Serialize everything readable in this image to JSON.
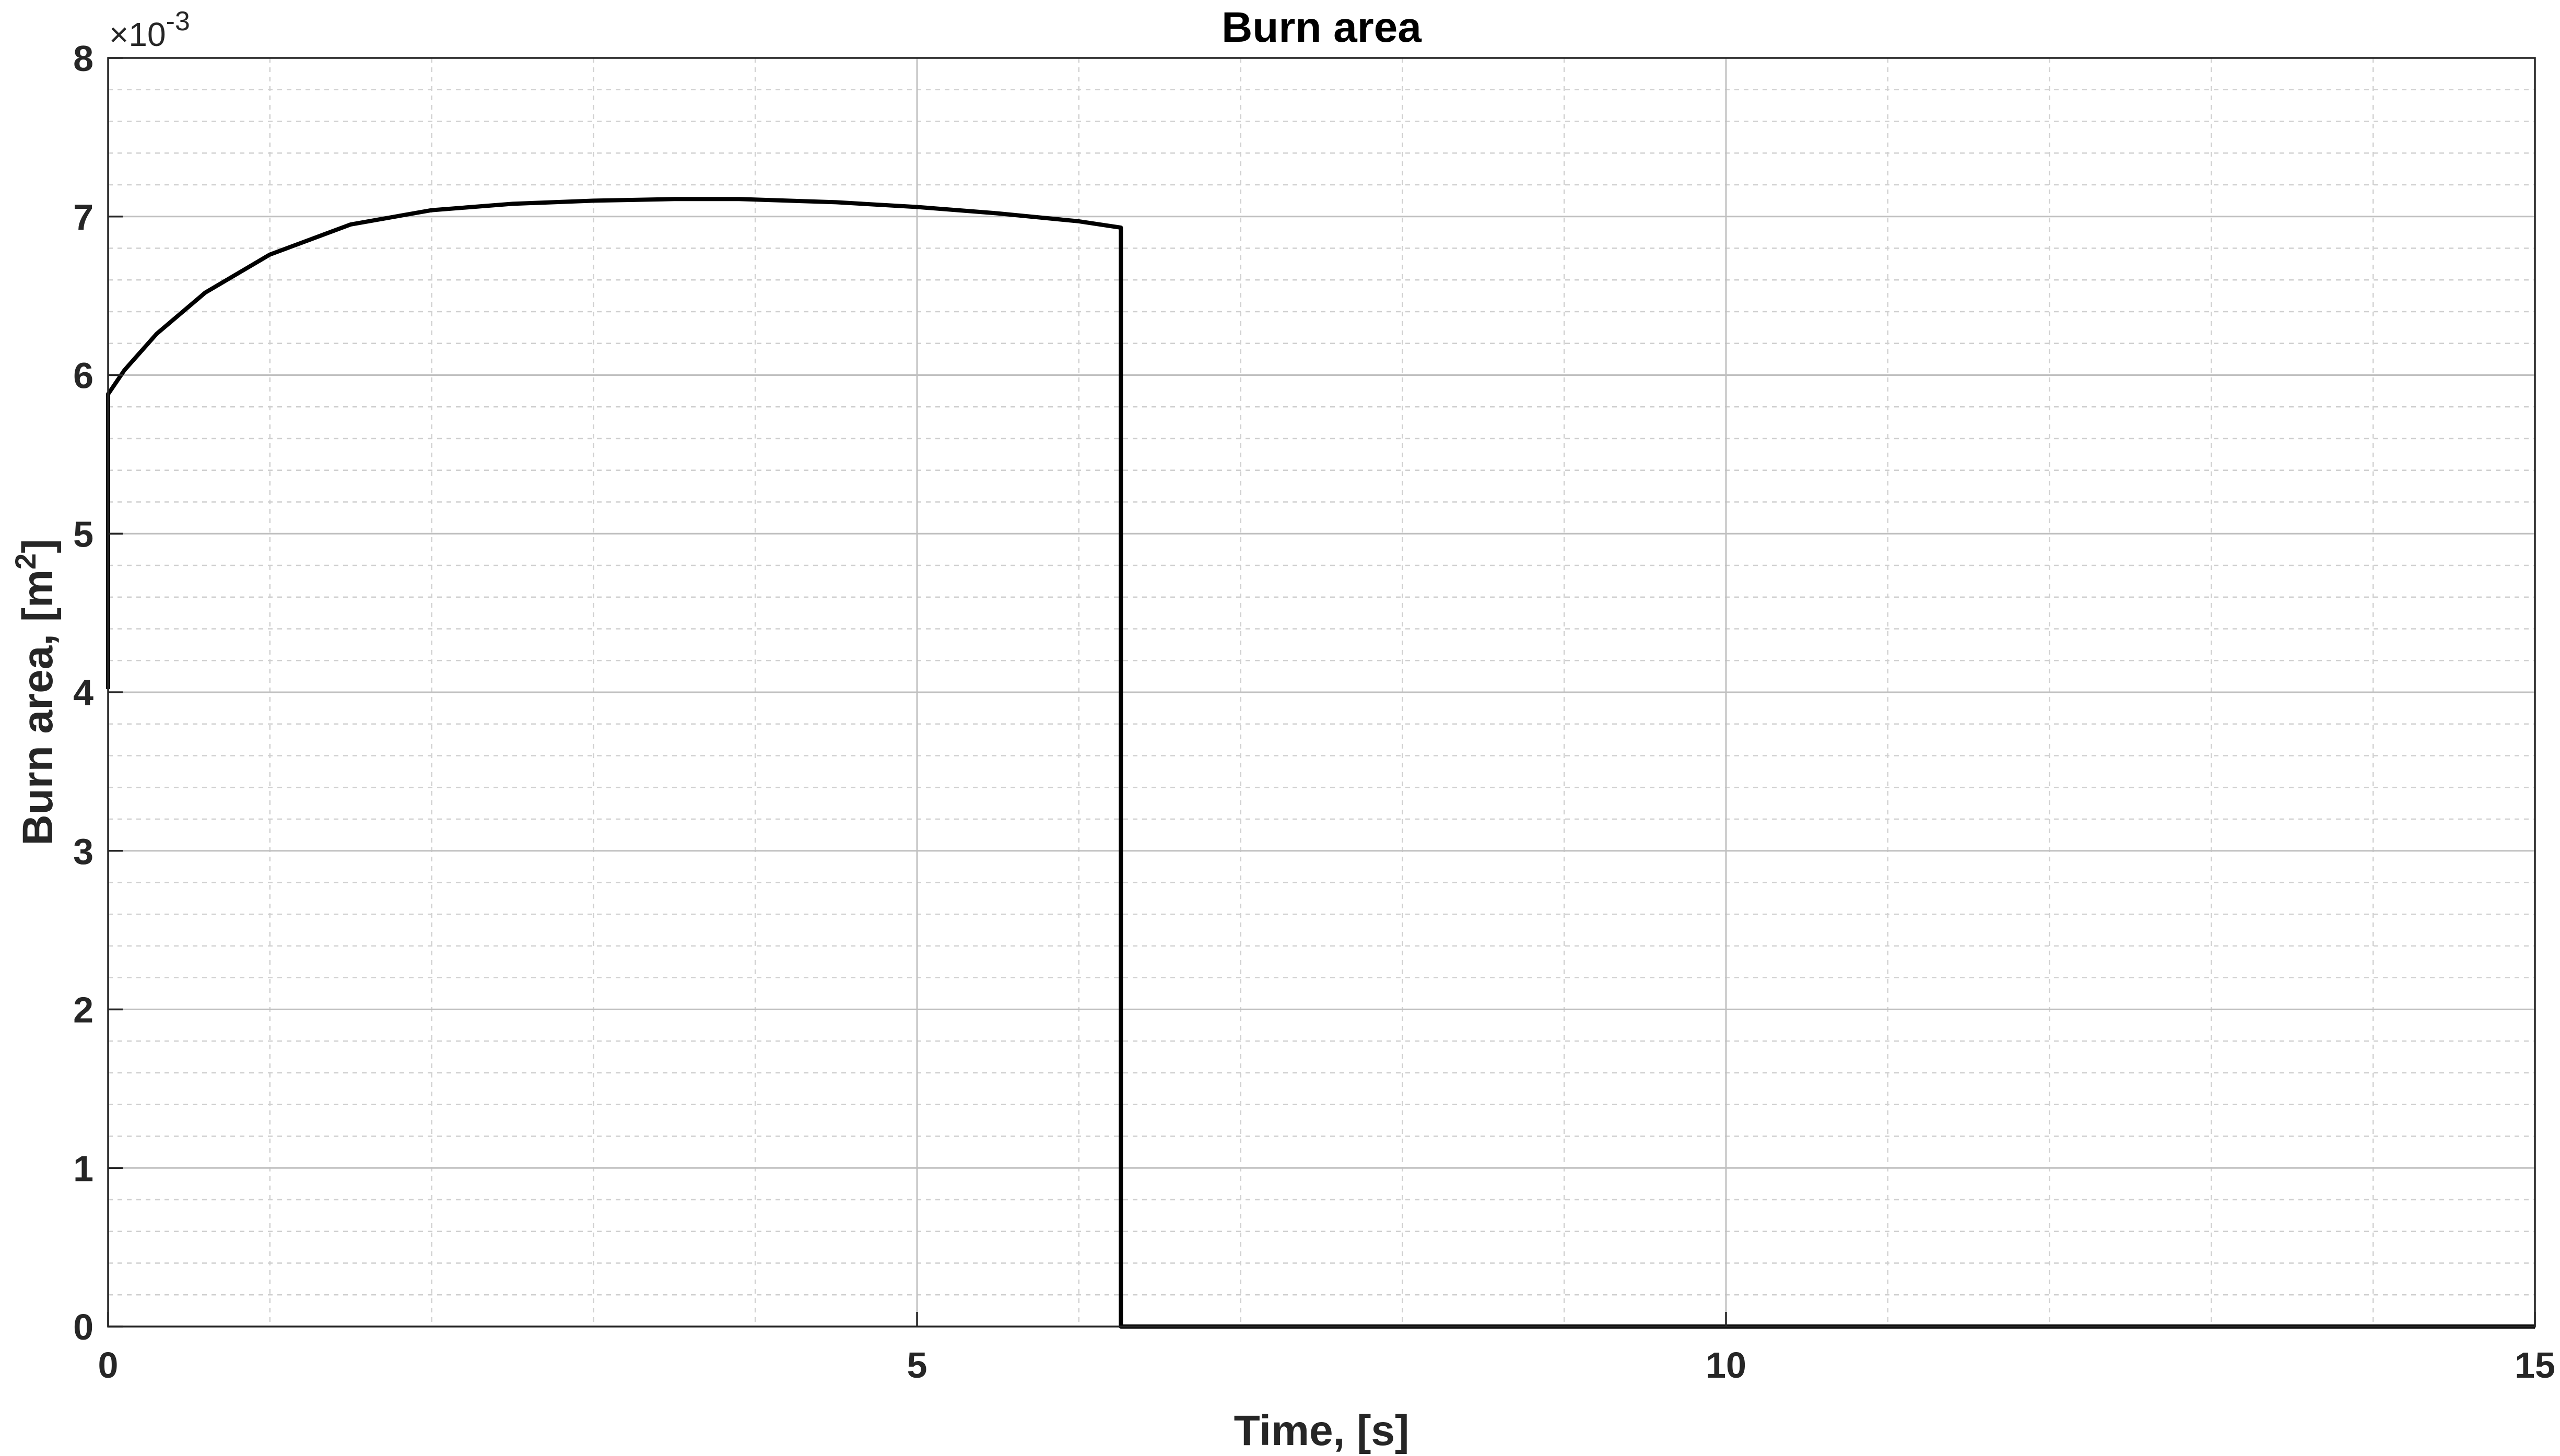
{
  "chart_data": {
    "type": "line",
    "title": "Burn area",
    "xlabel": "Time, [s]",
    "ylabel": "Burn area, [m",
    "ylabel_superscript": "2",
    "ylabel_suffix": "]",
    "y_exponent": "×10",
    "y_exponent_power": "-3",
    "xlim": [
      0,
      15
    ],
    "ylim": [
      0,
      0.008
    ],
    "xticks": [
      0,
      5,
      10,
      15
    ],
    "xtick_labels": [
      "0",
      "5",
      "10",
      "15"
    ],
    "yticks": [
      0,
      0.001,
      0.002,
      0.003,
      0.004,
      0.005,
      0.006,
      0.007,
      0.008
    ],
    "ytick_labels": [
      "0",
      "1",
      "2",
      "3",
      "4",
      "5",
      "6",
      "7",
      "8"
    ],
    "x_minor_step": 1,
    "y_minor_step": 0.0002,
    "grid": true,
    "minor_grid": true,
    "legend": null,
    "series": [
      {
        "color": "#000000",
        "x": [
          0,
          0,
          0.1,
          0.3,
          0.6,
          1.0,
          1.5,
          2.0,
          2.5,
          3.0,
          3.5,
          3.9,
          4.5,
          5.0,
          5.5,
          6.0,
          6.26,
          6.26,
          7,
          10,
          15
        ],
        "y": [
          0.00402,
          0.00588,
          0.00603,
          0.00626,
          0.00652,
          0.00676,
          0.00695,
          0.00704,
          0.00708,
          0.0071,
          0.00711,
          0.00711,
          0.00709,
          0.00706,
          0.00702,
          0.00697,
          0.00693,
          0,
          0,
          0,
          0
        ]
      }
    ]
  }
}
